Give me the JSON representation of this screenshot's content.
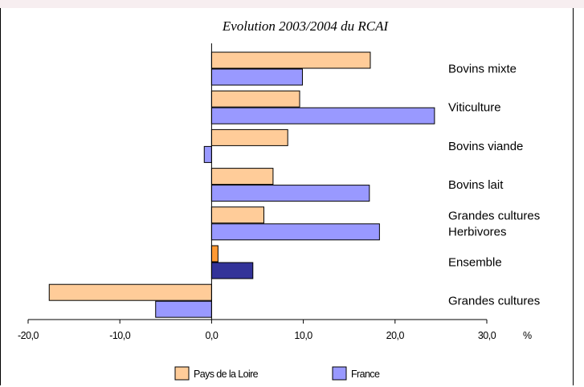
{
  "chart_data": {
    "type": "bar",
    "orientation": "horizontal",
    "title": "Evolution 2003/2004 du RCAI",
    "unit": "%",
    "xlim": [
      -20,
      30
    ],
    "ticks": [
      -20,
      -10,
      0,
      10,
      20,
      30
    ],
    "tick_labels": [
      "-20,0",
      "-10,0",
      "0,0",
      "10,0",
      "20,0",
      "30,0"
    ],
    "categories": [
      [
        "Bovins mixte"
      ],
      [
        "Viticulture"
      ],
      [
        "Bovins viande"
      ],
      [
        "Bovins lait"
      ],
      [
        "Grandes cultures",
        "Herbivores"
      ],
      [
        "Ensemble"
      ],
      [
        "Grandes cultures"
      ]
    ],
    "series": [
      {
        "name": "Pays de la Loire",
        "color": "#ffcc99",
        "highlight_color": "#ff9933",
        "values": [
          17.3,
          9.6,
          8.3,
          6.7,
          5.7,
          0.7,
          -17.7
        ]
      },
      {
        "name": "France",
        "color": "#9999ff",
        "highlight_color": "#333399",
        "values": [
          9.9,
          24.3,
          -0.8,
          17.2,
          18.3,
          4.5,
          -6.1
        ]
      }
    ],
    "highlight_category_index": 5,
    "legend_position": "bottom",
    "grid": false
  }
}
